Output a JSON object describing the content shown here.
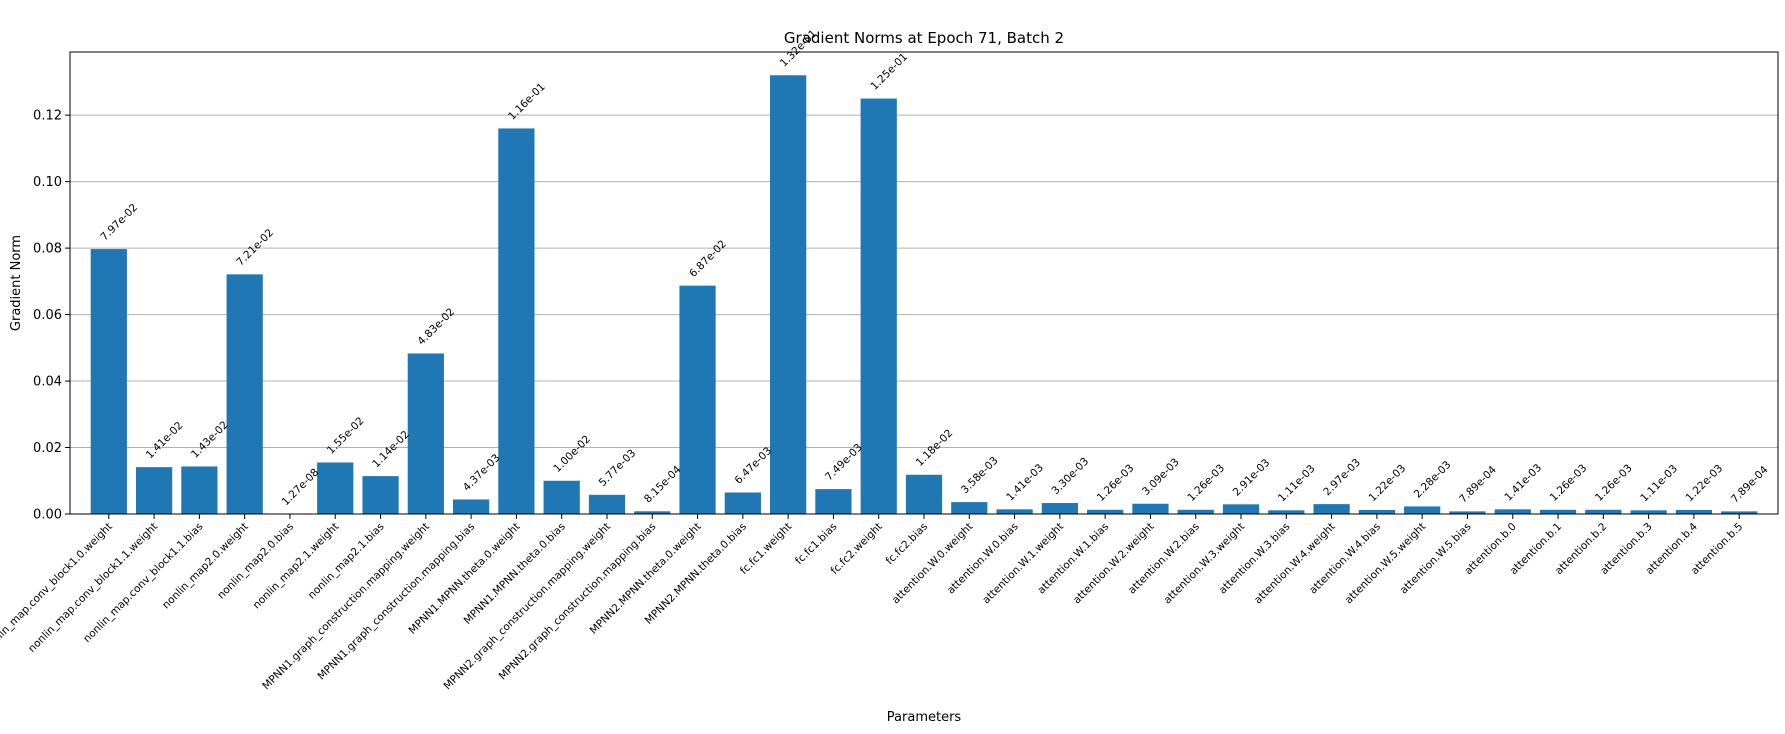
{
  "chart_data": {
    "type": "bar",
    "title": "Gradient Norms at Epoch 71, Batch 2",
    "xlabel": "Parameters",
    "ylabel": "Gradient Norm",
    "ylim": [
      0,
      0.139
    ],
    "yticks": [
      0.0,
      0.02,
      0.04,
      0.06,
      0.08,
      0.1,
      0.12
    ],
    "ytick_labels": [
      "0.00",
      "0.02",
      "0.04",
      "0.06",
      "0.08",
      "0.10",
      "0.12"
    ],
    "grid": "y",
    "color": "#1f77b4",
    "categories": [
      "nonlin_map.conv_block1.0.weight",
      "nonlin_map.conv_block1.1.weight",
      "nonlin_map.conv_block1.1.bias",
      "nonlin_map2.0.weight",
      "nonlin_map2.0.bias",
      "nonlin_map2.1.weight",
      "nonlin_map2.1.bias",
      "MPNN1.graph_construction.mapping.weight",
      "MPNN1.graph_construction.mapping.bias",
      "MPNN1.MPNN.theta.0.weight",
      "MPNN1.MPNN.theta.0.bias",
      "MPNN2.graph_construction.mapping.weight",
      "MPNN2.graph_construction.mapping.bias",
      "MPNN2.MPNN.theta.0.weight",
      "MPNN2.MPNN.theta.0.bias",
      "fc.fc1.weight",
      "fc.fc1.bias",
      "fc.fc2.weight",
      "fc.fc2.bias",
      "attention.W.0.weight",
      "attention.W.0.bias",
      "attention.W.1.weight",
      "attention.W.1.bias",
      "attention.W.2.weight",
      "attention.W.2.bias",
      "attention.W.3.weight",
      "attention.W.3.bias",
      "attention.W.4.weight",
      "attention.W.4.bias",
      "attention.W.5.weight",
      "attention.W.5.bias",
      "attention.b.0",
      "attention.b.1",
      "attention.b.2",
      "attention.b.3",
      "attention.b.4",
      "attention.b.5"
    ],
    "values": [
      0.0797,
      0.0141,
      0.0143,
      0.0721,
      1.27e-08,
      0.0155,
      0.0114,
      0.0483,
      0.00437,
      0.116,
      0.01,
      0.00577,
      0.000815,
      0.0687,
      0.00647,
      0.132,
      0.00749,
      0.125,
      0.0118,
      0.00358,
      0.00141,
      0.0033,
      0.00126,
      0.00309,
      0.00126,
      0.00291,
      0.00111,
      0.00297,
      0.00122,
      0.00228,
      0.000789,
      0.00141,
      0.00126,
      0.00126,
      0.00111,
      0.00122,
      0.000789
    ],
    "labels": [
      "7.97e-02",
      "1.41e-02",
      "1.43e-02",
      "7.21e-02",
      "1.27e-08",
      "1.55e-02",
      "1.14e-02",
      "4.83e-02",
      "4.37e-03",
      "1.16e-01",
      "1.00e-02",
      "5.77e-03",
      "8.15e-04",
      "6.87e-02",
      "6.47e-03",
      "1.32e-01",
      "7.49e-03",
      "1.25e-01",
      "1.18e-02",
      "3.58e-03",
      "1.41e-03",
      "3.30e-03",
      "1.26e-03",
      "3.09e-03",
      "1.26e-03",
      "2.91e-03",
      "1.11e-03",
      "2.97e-03",
      "1.22e-03",
      "2.28e-03",
      "7.89e-04",
      "1.41e-03",
      "1.26e-03",
      "1.26e-03",
      "1.11e-03",
      "1.22e-03",
      "7.89e-04"
    ]
  }
}
